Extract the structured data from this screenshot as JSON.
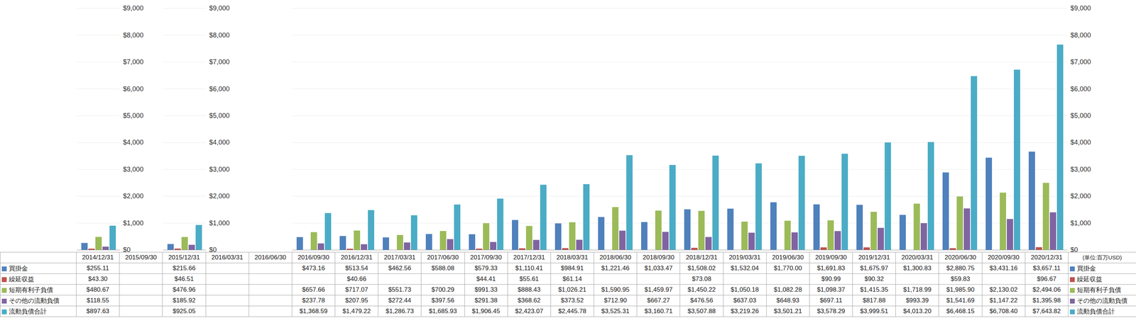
{
  "chart_data": {
    "type": "bar",
    "categories": [
      "2014/12/31",
      "2015/09/30",
      "2015/12/31",
      "2016/03/31",
      "2016/06/30",
      "2016/09/30",
      "2016/12/31",
      "2017/03/31",
      "2017/06/30",
      "2017/09/30",
      "2017/12/31",
      "2018/03/31",
      "2018/06/30",
      "2018/09/30",
      "2018/12/31",
      "2019/03/31",
      "2019/06/30",
      "2019/09/30",
      "2019/12/31",
      "2020/03/31",
      "2020/06/30",
      "2020/09/30",
      "2020/12/31"
    ],
    "ylabel": "(単位:百万USD)",
    "ylim": [
      0,
      9000
    ],
    "yticks": [
      {
        "value": 0,
        "label": "$0"
      },
      {
        "value": 1000,
        "label": "$1,000"
      },
      {
        "value": 2000,
        "label": "$2,000"
      },
      {
        "value": 3000,
        "label": "$3,000"
      },
      {
        "value": 4000,
        "label": "$4,000"
      },
      {
        "value": 5000,
        "label": "$5,000"
      },
      {
        "value": 6000,
        "label": "$6,000"
      },
      {
        "value": 7000,
        "label": "$7,000"
      },
      {
        "value": 8000,
        "label": "$8,000"
      },
      {
        "value": 9000,
        "label": "$9,000"
      }
    ],
    "grid": true,
    "series": [
      {
        "name": "買掛金",
        "color": "#4f81bd",
        "values": [
          255.11,
          null,
          215.66,
          null,
          null,
          473.16,
          513.54,
          462.56,
          588.08,
          579.33,
          1110.41,
          984.91,
          1221.46,
          1033.47,
          1508.02,
          1532.04,
          1770.0,
          1691.83,
          1675.97,
          1300.83,
          2880.75,
          3431.16,
          3657.11
        ],
        "value_labels": [
          "$255.11",
          null,
          "$215.66",
          null,
          null,
          "$473.16",
          "$513.54",
          "$462.56",
          "$588.08",
          "$579.33",
          "$1,110.41",
          "$984.91",
          "$1,221.46",
          "$1,033.47",
          "$1,508.02",
          "$1,532.04",
          "$1,770.00",
          "$1,691.83",
          "$1,675.97",
          "$1,300.83",
          "$2,880.75",
          "$3,431.16",
          "$3,657.11"
        ]
      },
      {
        "name": "繰延収益",
        "color": "#c0504d",
        "values": [
          43.3,
          null,
          46.51,
          null,
          null,
          null,
          40.66,
          null,
          null,
          44.41,
          55.61,
          61.14,
          null,
          null,
          73.08,
          null,
          null,
          90.99,
          90.32,
          null,
          59.83,
          null,
          96.67
        ],
        "value_labels": [
          "$43.30",
          null,
          "$46.51",
          null,
          null,
          null,
          "$40.66",
          null,
          null,
          "$44.41",
          "$55.61",
          "$61.14",
          null,
          null,
          "$73.08",
          null,
          null,
          "$90.99",
          "$90.32",
          null,
          "$59.83",
          null,
          "$96.67"
        ]
      },
      {
        "name": "短期有利子負債",
        "color": "#9bbb59",
        "values": [
          480.67,
          null,
          476.96,
          null,
          null,
          657.66,
          717.07,
          551.73,
          700.29,
          991.33,
          888.43,
          1026.21,
          1590.95,
          1459.97,
          1450.22,
          1050.18,
          1082.28,
          1098.37,
          1415.35,
          1718.99,
          1985.9,
          2130.02,
          2494.06
        ],
        "value_labels": [
          "$480.67",
          null,
          "$476.96",
          null,
          null,
          "$657.66",
          "$717.07",
          "$551.73",
          "$700.29",
          "$991.33",
          "$888.43",
          "$1,026.21",
          "$1,590.95",
          "$1,459.97",
          "$1,450.22",
          "$1,050.18",
          "$1,082.28",
          "$1,098.37",
          "$1,415.35",
          "$1,718.99",
          "$1,985.90",
          "$2,130.02",
          "$2,494.06"
        ]
      },
      {
        "name": "その他の流動負債",
        "color": "#8064a2",
        "values": [
          118.55,
          null,
          185.92,
          null,
          null,
          237.78,
          207.95,
          272.44,
          397.56,
          291.38,
          368.62,
          373.52,
          712.9,
          667.27,
          476.56,
          637.03,
          648.93,
          697.11,
          817.88,
          993.39,
          1541.69,
          1147.22,
          1395.98
        ],
        "value_labels": [
          "$118.55",
          null,
          "$185.92",
          null,
          null,
          "$237.78",
          "$207.95",
          "$272.44",
          "$397.56",
          "$291.38",
          "$368.62",
          "$373.52",
          "$712.90",
          "$667.27",
          "$476.56",
          "$637.03",
          "$648.93",
          "$697.11",
          "$817.88",
          "$993.39",
          "$1,541.69",
          "$1,147.22",
          "$1,395.98"
        ]
      },
      {
        "name": "流動負債合計",
        "color": "#4bacc6",
        "values": [
          897.63,
          null,
          925.05,
          null,
          null,
          1368.59,
          1479.22,
          1286.73,
          1685.93,
          1906.45,
          2423.07,
          2445.78,
          3525.31,
          3160.71,
          3507.88,
          3219.26,
          3501.21,
          3578.29,
          3999.51,
          4013.2,
          6468.15,
          6708.4,
          7643.82
        ],
        "value_labels": [
          "$897.63",
          null,
          "$925.05",
          null,
          null,
          "$1,368.59",
          "$1,479.22",
          "$1,286.73",
          "$1,685.93",
          "$1,906.45",
          "$2,423.07",
          "$2,445.78",
          "$3,525.31",
          "$3,160.71",
          "$3,507.88",
          "$3,219.26",
          "$3,501.21",
          "$3,578.29",
          "$3,999.51",
          "$4,013.20",
          "$6,468.15",
          "$6,708.40",
          "$7,643.82"
        ]
      }
    ]
  }
}
